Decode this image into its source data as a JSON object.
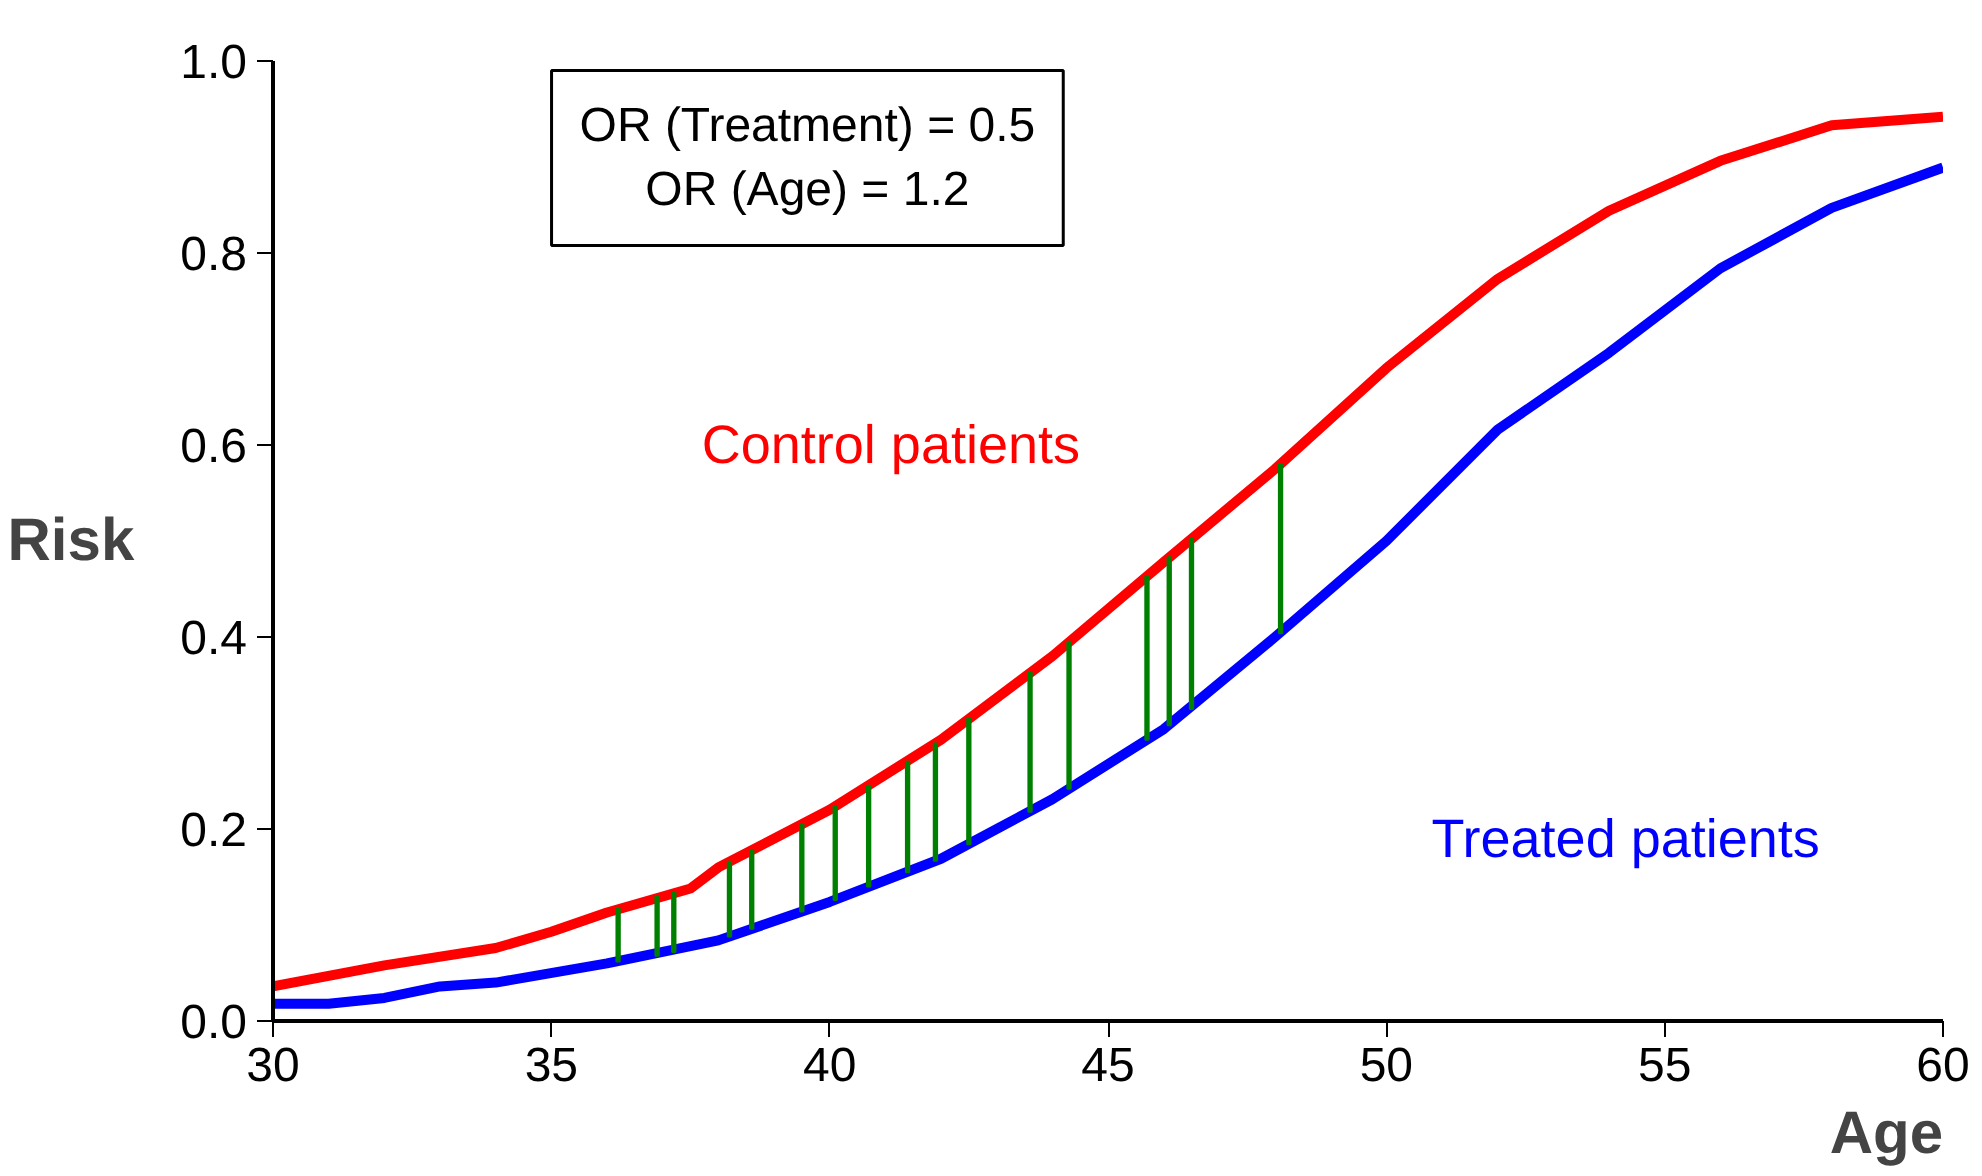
{
  "chart_data": {
    "type": "line",
    "xlabel": "Age",
    "ylabel": "Risk",
    "xlim": [
      30,
      60
    ],
    "ylim": [
      0,
      1
    ],
    "xticks": [
      30,
      35,
      40,
      45,
      50,
      55,
      60
    ],
    "yticks": [
      {
        "value": 0,
        "label": "0.0"
      },
      0.2,
      0.4,
      0.6,
      0.8,
      {
        "value": 1,
        "label": "1.0"
      }
    ],
    "grid": false,
    "legend": false,
    "marker": "none",
    "line_style": "solid",
    "annotations": [
      "OR (Treatment) = 0.5",
      "OR (Age) = 1.2"
    ],
    "series": [
      {
        "name": "Control patients",
        "color": "#ff0000",
        "x": [
          30,
          32,
          34,
          35,
          36,
          37.5,
          38,
          40,
          42,
          44,
          46,
          48,
          50,
          52,
          54,
          56,
          58,
          60
        ],
        "values": [
          0.036,
          0.058,
          0.076,
          0.093,
          0.113,
          0.138,
          0.16,
          0.22,
          0.293,
          0.38,
          0.478,
          0.575,
          0.68,
          0.773,
          0.844,
          0.896,
          0.933,
          0.942
        ]
      },
      {
        "name": "Treated patients",
        "color": "#0000ff",
        "x": [
          30,
          31,
          32,
          33,
          34,
          36,
          38,
          40,
          42,
          44,
          46,
          48,
          50,
          52,
          54,
          56,
          58,
          60
        ],
        "values": [
          0.018,
          0.018,
          0.024,
          0.036,
          0.04,
          0.06,
          0.084,
          0.124,
          0.169,
          0.231,
          0.304,
          0.4,
          0.5,
          0.616,
          0.696,
          0.784,
          0.847,
          0.889
        ]
      },
      {
        "type": "bar",
        "color": "#008000",
        "x": [
          36.2,
          36.9,
          37.2,
          38.2,
          38.6,
          39.5,
          40.1,
          40.7,
          41.4,
          41.9,
          42.5,
          43.6,
          44.3,
          45.7,
          46.1,
          46.5,
          48.1
        ],
        "base": [
          0.062,
          0.068,
          0.072,
          0.088,
          0.096,
          0.114,
          0.126,
          0.14,
          0.155,
          0.167,
          0.184,
          0.218,
          0.242,
          0.293,
          0.308,
          0.325,
          0.404
        ],
        "values": [
          0.055,
          0.062,
          0.062,
          0.078,
          0.082,
          0.091,
          0.098,
          0.105,
          0.115,
          0.122,
          0.131,
          0.145,
          0.153,
          0.17,
          0.175,
          0.177,
          0.176
        ]
      }
    ]
  }
}
